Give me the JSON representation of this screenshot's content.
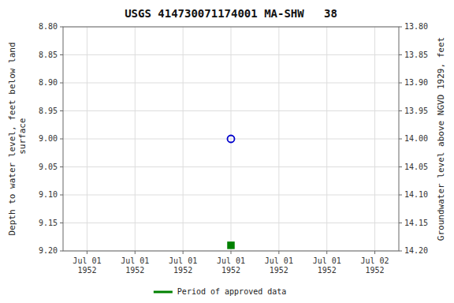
{
  "chart_data": {
    "type": "scatter",
    "title": "USGS 414730071174001 MA-SHW   38",
    "ylabel": "Depth to water level, feet below land\n surface",
    "y2label": "Groundwater level above NGVD 1929, feet",
    "categories": [
      "Jul 01\n1952",
      "Jul 01\n1952",
      "Jul 01\n1952",
      "Jul 01\n1952",
      "Jul 01\n1952",
      "Jul 01\n1952",
      "Jul 02\n1952"
    ],
    "series": [
      {
        "color": "#0000cc",
        "marker": "open-circle",
        "values": [
          null,
          null,
          null,
          9.0,
          null,
          null,
          null
        ]
      },
      {
        "name": "Period of approved data",
        "color": "#008000",
        "marker": "square",
        "values": [
          null,
          null,
          null,
          9.19,
          null,
          null,
          null
        ]
      }
    ],
    "ylim": [
      9.2,
      8.8
    ],
    "yticks": [
      {
        "value": 8.8,
        "label": "8.80"
      },
      8.85,
      {
        "value": 8.9,
        "label": "8.90"
      },
      8.95,
      {
        "value": 9.0,
        "label": "9.00"
      },
      9.05,
      {
        "value": 9.1,
        "label": "9.10"
      },
      9.15,
      {
        "value": 9.2,
        "label": "9.20"
      }
    ],
    "y2lim": [
      14.2,
      13.8
    ],
    "y2ticks": [
      {
        "value": 14.2,
        "label": "14.20"
      },
      14.15,
      {
        "value": 14.1,
        "label": "14.10"
      },
      14.05,
      {
        "value": 14.0,
        "label": "14.00"
      },
      13.95,
      {
        "value": 13.9,
        "label": "13.90"
      },
      13.85,
      {
        "value": 13.8,
        "label": "13.80"
      }
    ],
    "grid": true,
    "legend": "bottom"
  }
}
